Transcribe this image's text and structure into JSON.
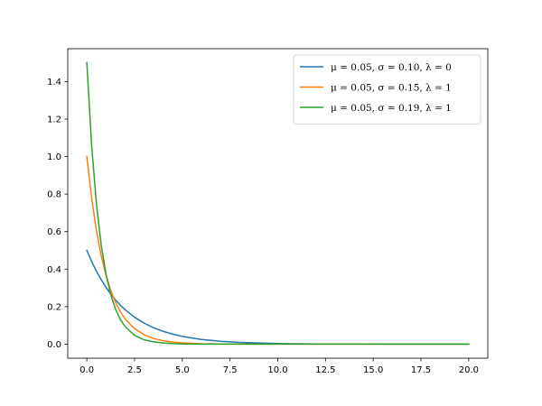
{
  "chart_data": {
    "type": "line",
    "title": "",
    "xlabel": "",
    "ylabel": "",
    "xlim": [
      -1.0,
      21.0
    ],
    "ylim": [
      -0.075,
      1.575
    ],
    "x_ticks": [
      0.0,
      2.5,
      5.0,
      7.5,
      10.0,
      12.5,
      15.0,
      17.5,
      20.0
    ],
    "x_tick_labels": [
      "0.0",
      "2.5",
      "5.0",
      "7.5",
      "10.0",
      "12.5",
      "15.0",
      "17.5",
      "20.0"
    ],
    "y_ticks": [
      0.0,
      0.2,
      0.4,
      0.6,
      0.8,
      1.0,
      1.2,
      1.4
    ],
    "y_tick_labels": [
      "0.0",
      "0.2",
      "0.4",
      "0.6",
      "0.8",
      "1.0",
      "1.2",
      "1.4"
    ],
    "grid": false,
    "legend_position": "top-right",
    "x": [
      0,
      0.25,
      0.5,
      0.75,
      1,
      1.25,
      1.5,
      1.75,
      2,
      2.5,
      3,
      3.5,
      4,
      4.5,
      5,
      6,
      7,
      8,
      9,
      10,
      12,
      14,
      16,
      18,
      20
    ],
    "series": [
      {
        "name": "μ = 0.05, σ = 0.10, λ = 0",
        "color": "#1f77b4",
        "values": [
          0.5,
          0.441,
          0.389,
          0.344,
          0.303,
          0.268,
          0.236,
          0.208,
          0.184,
          0.143,
          0.112,
          0.087,
          0.068,
          0.053,
          0.041,
          0.025,
          0.015,
          0.009,
          0.006,
          0.003,
          0.001,
          0.0005,
          0.0002,
          0.0001,
          0.0
        ]
      },
      {
        "name": "μ = 0.05, σ = 0.15, λ = 1",
        "color": "#ff7f0e",
        "values": [
          1.0,
          0.779,
          0.607,
          0.472,
          0.368,
          0.287,
          0.223,
          0.174,
          0.135,
          0.082,
          0.05,
          0.03,
          0.018,
          0.011,
          0.007,
          0.002,
          0.001,
          0.0003,
          0.0001,
          0.0,
          0.0,
          0.0,
          0.0,
          0.0,
          0.0
        ]
      },
      {
        "name": "μ = 0.05, σ = 0.19, λ = 1",
        "color": "#2ca02c",
        "values": [
          1.5,
          1.061,
          0.75,
          0.53,
          0.375,
          0.265,
          0.187,
          0.132,
          0.094,
          0.047,
          0.023,
          0.012,
          0.006,
          0.003,
          0.001,
          0.0004,
          0.0001,
          0.0,
          0.0,
          0.0,
          0.0,
          0.0,
          0.0,
          0.0,
          0.0
        ]
      }
    ]
  }
}
